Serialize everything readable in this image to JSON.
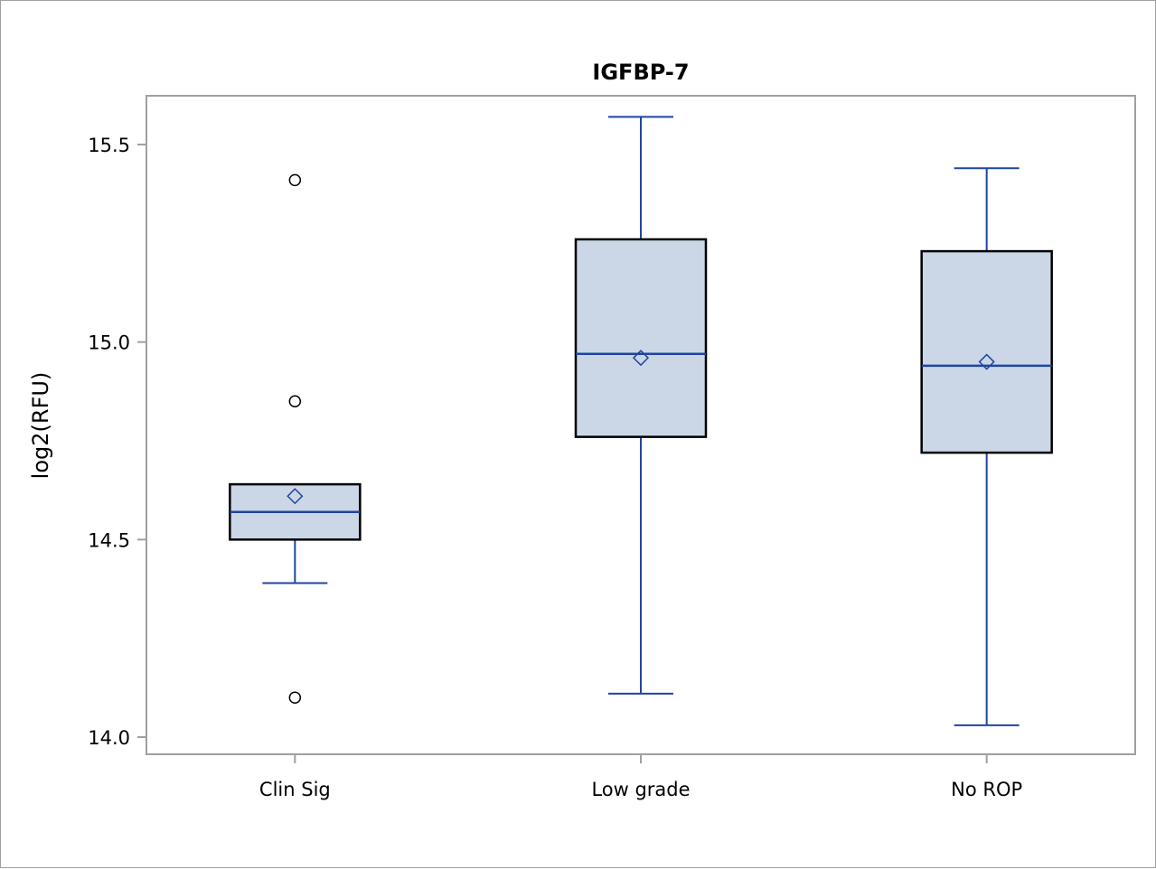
{
  "chart_data": {
    "type": "box",
    "title": "IGFBP-7",
    "xlabel": "",
    "ylabel": "log2(RFU)",
    "ylim": [
      13.96,
      15.61
    ],
    "yticks": [
      "14.0",
      "14.5",
      "15.0",
      "15.5"
    ],
    "grid": false,
    "categories": [
      "Clin Sig",
      "Low grade",
      "No ROP"
    ],
    "boxes": [
      {
        "category": "Clin Sig",
        "whisker_low": 14.39,
        "q1": 14.5,
        "median": 14.57,
        "q3": 14.64,
        "whisker_high": 14.64,
        "mean": 14.61,
        "outliers": [
          15.41,
          14.85,
          14.1
        ]
      },
      {
        "category": "Low grade",
        "whisker_low": 14.11,
        "q1": 14.76,
        "median": 14.97,
        "q3": 15.26,
        "whisker_high": 15.57,
        "mean": 14.96,
        "outliers": []
      },
      {
        "category": "No ROP",
        "whisker_low": 14.03,
        "q1": 14.72,
        "median": 14.94,
        "q3": 15.23,
        "whisker_high": 15.44,
        "mean": 14.95,
        "outliers": []
      }
    ],
    "colors": {
      "box_fill": "#cbd6e6",
      "box_edge": "#000000",
      "whisker": "#1f45a0",
      "median": "#1f45a0",
      "mean_marker": "#1f45a0",
      "outlier": "#000000",
      "axis": "#a0a0a0"
    }
  }
}
